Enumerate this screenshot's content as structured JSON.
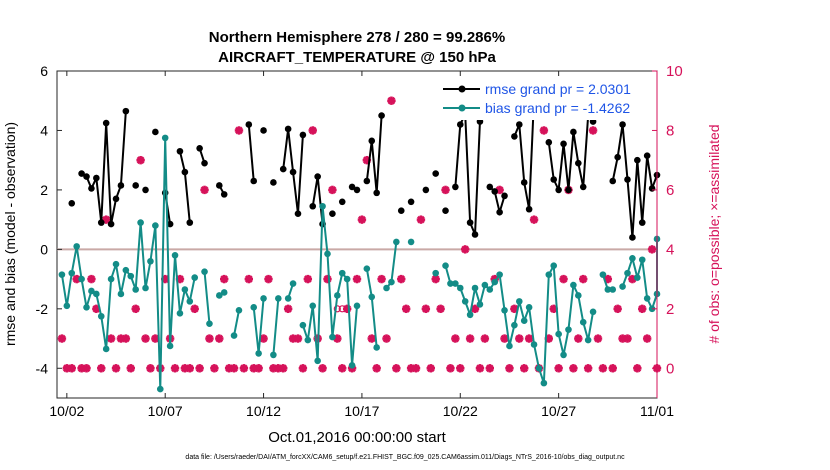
{
  "chart_data": {
    "type": "line",
    "title_line1": "Northern Hemisphere 278 / 280 = 99.286%",
    "title_line2": "AIRCRAFT_TEMPERATURE @ 150 hPa",
    "xlabel": "Oct.01,2016 00:00:00 start",
    "ylabel_left": "rmse and bias (model - observation)",
    "ylabel_right": "# of obs: o=possible; ×=assimilated",
    "footnote": "data file: /Users/raeder/DAI/ATM_forcXX/CAM6_setup/f.e21.FHIST_BGC.f09_025.CAM6assim.011/Diags_NTrS_2016-10/obs_diag_output.nc",
    "xlim": [
      0.5,
      31.0
    ],
    "ylim_left": [
      -5,
      6
    ],
    "ylim_right": [
      -1,
      10
    ],
    "x_ticks": [
      1,
      6,
      11,
      16,
      21,
      26,
      31
    ],
    "x_tick_labels": [
      "10/02",
      "10/07",
      "10/12",
      "10/17",
      "10/22",
      "10/27",
      "11/01"
    ],
    "y_ticks_left": [
      -4,
      -2,
      0,
      2,
      4,
      6
    ],
    "y_ticks_right": [
      0,
      2,
      4,
      6,
      8,
      10
    ],
    "zero_line": 0,
    "legend_position": "top-right",
    "colors": {
      "rmse": "#000000",
      "bias": "#138c87",
      "obs": "#d6125a",
      "zero_line": "#c9a9a6",
      "legend_text": "#1f55e6"
    },
    "series": [
      {
        "name": "rmse grand pr = 2.0301",
        "points": [
          [
            1.25,
            1.55
          ],
          [
            1.75,
            2.55
          ],
          [
            2.0,
            2.45
          ],
          [
            2.25,
            2.05
          ],
          [
            2.5,
            2.4
          ],
          [
            2.75,
            0.9
          ],
          [
            3.0,
            4.25
          ],
          [
            3.25,
            0.85
          ],
          [
            3.5,
            1.7
          ],
          [
            3.75,
            2.15
          ],
          [
            4.0,
            4.65
          ],
          [
            4.5,
            2.15
          ],
          [
            5.0,
            2.0
          ],
          [
            5.5,
            3.95
          ],
          [
            6.0,
            1.9
          ],
          [
            6.25,
            0.85
          ],
          [
            6.75,
            3.3
          ],
          [
            7.0,
            2.6
          ],
          [
            7.25,
            0.9
          ],
          [
            7.75,
            3.4
          ],
          [
            8.0,
            2.9
          ],
          [
            8.75,
            2.15
          ],
          [
            9.0,
            1.85
          ],
          [
            10.25,
            4.2
          ],
          [
            10.5,
            2.3
          ],
          [
            11.0,
            4.0
          ],
          [
            11.5,
            2.25
          ],
          [
            12.0,
            2.7
          ],
          [
            12.25,
            4.05
          ],
          [
            12.5,
            2.6
          ],
          [
            12.75,
            1.2
          ],
          [
            13.0,
            3.85
          ],
          [
            13.5,
            1.45
          ],
          [
            13.75,
            2.45
          ],
          [
            14.0,
            0.85
          ],
          [
            14.5,
            1.2
          ],
          [
            15.0,
            1.6
          ],
          [
            15.5,
            2.1
          ],
          [
            15.75,
            2.0
          ],
          [
            16.25,
            2.3
          ],
          [
            16.5,
            3.65
          ],
          [
            16.75,
            1.9
          ],
          [
            17.0,
            4.5
          ],
          [
            18.0,
            1.3
          ],
          [
            18.5,
            1.6
          ],
          [
            19.25,
            2.0
          ],
          [
            19.75,
            2.55
          ],
          [
            20.25,
            1.3
          ],
          [
            20.75,
            2.1
          ],
          [
            21.0,
            4.2
          ],
          [
            21.25,
            4.55
          ],
          [
            21.5,
            0.9
          ],
          [
            21.75,
            0.5
          ],
          [
            22.0,
            4.3
          ],
          [
            22.5,
            2.1
          ],
          [
            22.75,
            1.95
          ],
          [
            23.0,
            1.25
          ],
          [
            23.25,
            1.8
          ],
          [
            23.75,
            3.8
          ],
          [
            24.0,
            4.2
          ],
          [
            24.25,
            2.25
          ],
          [
            24.5,
            1.35
          ],
          [
            24.75,
            5.1
          ],
          [
            25.0,
            5.2
          ],
          [
            25.5,
            3.6
          ],
          [
            25.75,
            2.35
          ],
          [
            26.0,
            2.0
          ],
          [
            26.25,
            3.55
          ],
          [
            26.5,
            2.0
          ],
          [
            26.75,
            3.95
          ],
          [
            27.0,
            2.9
          ],
          [
            27.25,
            2.1
          ],
          [
            27.5,
            4.5
          ],
          [
            27.75,
            4.3
          ],
          [
            28.75,
            2.3
          ],
          [
            29.0,
            3.1
          ],
          [
            29.25,
            4.2
          ],
          [
            29.5,
            2.35
          ],
          [
            29.75,
            0.4
          ],
          [
            30.0,
            3.0
          ],
          [
            30.25,
            0.9
          ],
          [
            30.5,
            3.15
          ],
          [
            30.75,
            2.05
          ],
          [
            31.0,
            2.5
          ]
        ]
      },
      {
        "name": "bias grand pr = -1.4262",
        "points": [
          [
            0.75,
            -0.85
          ],
          [
            1.0,
            -1.9
          ],
          [
            1.25,
            -0.8
          ],
          [
            1.5,
            0.1
          ],
          [
            1.75,
            -1.0
          ],
          [
            2.0,
            -1.95
          ],
          [
            2.25,
            -1.4
          ],
          [
            2.5,
            -1.5
          ],
          [
            2.75,
            -2.25
          ],
          [
            3.0,
            -3.35
          ],
          [
            3.25,
            -1.0
          ],
          [
            3.5,
            -0.5
          ],
          [
            3.75,
            -1.5
          ],
          [
            4.0,
            -0.7
          ],
          [
            4.25,
            -0.9
          ],
          [
            4.5,
            -1.35
          ],
          [
            4.75,
            0.9
          ],
          [
            5.0,
            -1.3
          ],
          [
            5.25,
            -0.4
          ],
          [
            5.5,
            0.8
          ],
          [
            5.75,
            -4.7
          ],
          [
            6.0,
            3.75
          ],
          [
            6.25,
            -3.25
          ],
          [
            6.5,
            -0.2
          ],
          [
            6.75,
            -2.15
          ],
          [
            7.0,
            -1.35
          ],
          [
            7.25,
            -1.75
          ],
          [
            7.5,
            -0.95
          ],
          [
            8.0,
            -0.75
          ],
          [
            8.25,
            -2.5
          ],
          [
            8.75,
            -1.55
          ],
          [
            9.0,
            -1.45
          ],
          [
            9.5,
            -2.9
          ],
          [
            9.75,
            -2.05
          ],
          [
            10.5,
            -1.95
          ],
          [
            10.75,
            -3.5
          ],
          [
            11.0,
            -1.65
          ],
          [
            11.5,
            -3.55
          ],
          [
            11.75,
            -1.65
          ],
          [
            12.25,
            -1.65
          ],
          [
            12.5,
            -1.15
          ],
          [
            13.0,
            -2.55
          ],
          [
            13.25,
            -3.05
          ],
          [
            13.5,
            -1.9
          ],
          [
            13.75,
            -3.75
          ],
          [
            14.0,
            1.45
          ],
          [
            14.25,
            -0.15
          ],
          [
            14.5,
            -2.95
          ],
          [
            14.75,
            -1.55
          ],
          [
            15.0,
            -0.8
          ],
          [
            15.25,
            -1.0
          ],
          [
            15.5,
            -3.9
          ],
          [
            15.75,
            -1.9
          ],
          [
            16.25,
            -0.65
          ],
          [
            16.5,
            -1.6
          ],
          [
            16.75,
            -3.3
          ],
          [
            17.25,
            -1.3
          ],
          [
            17.5,
            -1.1
          ],
          [
            17.75,
            0.25
          ],
          [
            18.5,
            0.25
          ],
          [
            19.75,
            -0.8
          ],
          [
            20.25,
            -0.55
          ],
          [
            20.5,
            -1.15
          ],
          [
            20.75,
            -1.15
          ],
          [
            21.0,
            -1.3
          ],
          [
            21.25,
            -1.75
          ],
          [
            21.5,
            -2.2
          ],
          [
            21.75,
            -1.3
          ],
          [
            22.0,
            -1.85
          ],
          [
            22.25,
            -1.2
          ],
          [
            22.5,
            -1.35
          ],
          [
            22.75,
            -1.1
          ],
          [
            23.0,
            -0.85
          ],
          [
            23.25,
            -2.05
          ],
          [
            23.5,
            -3.25
          ],
          [
            23.75,
            -2.55
          ],
          [
            24.0,
            -1.75
          ],
          [
            24.25,
            -2.4
          ],
          [
            24.5,
            -1.95
          ],
          [
            24.75,
            -3.2
          ],
          [
            25.0,
            -4.0
          ],
          [
            25.25,
            -4.5
          ],
          [
            25.5,
            -0.85
          ],
          [
            25.75,
            -0.55
          ],
          [
            26.0,
            -2.85
          ],
          [
            26.25,
            -3.55
          ],
          [
            26.5,
            -2.7
          ],
          [
            26.75,
            -1.2
          ],
          [
            27.0,
            -1.55
          ],
          [
            27.25,
            -2.45
          ],
          [
            27.5,
            -3.05
          ],
          [
            27.75,
            -2.1
          ],
          [
            28.25,
            -0.85
          ],
          [
            28.5,
            -1.35
          ],
          [
            28.75,
            -1.35
          ],
          [
            29.25,
            -1.25
          ],
          [
            29.5,
            -0.8
          ],
          [
            29.75,
            -0.3
          ],
          [
            30.0,
            -0.95
          ],
          [
            30.25,
            -0.35
          ],
          [
            30.5,
            -1.65
          ],
          [
            30.75,
            -2.0
          ],
          [
            31.0,
            -1.5
          ],
          [
            31.25,
            0.35
          ]
        ]
      }
    ],
    "obs_assimilated": [
      [
        0.75,
        1
      ],
      [
        1.0,
        0
      ],
      [
        1.25,
        0
      ],
      [
        1.5,
        3
      ],
      [
        1.75,
        0
      ],
      [
        2.0,
        0
      ],
      [
        2.25,
        3
      ],
      [
        2.5,
        2
      ],
      [
        2.75,
        0
      ],
      [
        3.0,
        5
      ],
      [
        3.25,
        1
      ],
      [
        3.5,
        0
      ],
      [
        3.75,
        1
      ],
      [
        4.0,
        1
      ],
      [
        4.25,
        0
      ],
      [
        4.5,
        2
      ],
      [
        4.75,
        7
      ],
      [
        5.0,
        1
      ],
      [
        5.25,
        0
      ],
      [
        5.5,
        1
      ],
      [
        5.75,
        0
      ],
      [
        6.0,
        3
      ],
      [
        6.25,
        1
      ],
      [
        6.5,
        0
      ],
      [
        6.75,
        3
      ],
      [
        7.0,
        0
      ],
      [
        7.25,
        0
      ],
      [
        7.5,
        2
      ],
      [
        7.75,
        0
      ],
      [
        8.0,
        6
      ],
      [
        8.25,
        1
      ],
      [
        8.5,
        0
      ],
      [
        8.75,
        1
      ],
      [
        9.0,
        3
      ],
      [
        9.25,
        0
      ],
      [
        9.5,
        0
      ],
      [
        9.75,
        8
      ],
      [
        10.0,
        0
      ],
      [
        10.25,
        3
      ],
      [
        10.5,
        0
      ],
      [
        10.75,
        0
      ],
      [
        11.0,
        1
      ],
      [
        11.25,
        3
      ],
      [
        11.5,
        0
      ],
      [
        11.75,
        0
      ],
      [
        12.0,
        0
      ],
      [
        12.25,
        2
      ],
      [
        12.5,
        1
      ],
      [
        12.75,
        1
      ],
      [
        13.0,
        0
      ],
      [
        13.25,
        3
      ],
      [
        13.5,
        8
      ],
      [
        13.75,
        1
      ],
      [
        14.0,
        0
      ],
      [
        14.25,
        3
      ],
      [
        14.5,
        6
      ],
      [
        14.75,
        1
      ],
      [
        15.0,
        0
      ],
      [
        15.25,
        2
      ],
      [
        15.5,
        0
      ],
      [
        15.75,
        3
      ],
      [
        16.0,
        5
      ],
      [
        16.25,
        7
      ],
      [
        16.5,
        1
      ],
      [
        16.75,
        0
      ],
      [
        17.0,
        3
      ],
      [
        17.25,
        1
      ],
      [
        17.5,
        9
      ],
      [
        17.75,
        0
      ],
      [
        18.0,
        3
      ],
      [
        18.25,
        2
      ],
      [
        18.5,
        0
      ],
      [
        18.75,
        0
      ],
      [
        19.0,
        5
      ],
      [
        19.25,
        2
      ],
      [
        19.5,
        0
      ],
      [
        19.75,
        3
      ],
      [
        20.0,
        2
      ],
      [
        20.25,
        6
      ],
      [
        20.5,
        0
      ],
      [
        20.75,
        1
      ],
      [
        21.0,
        0
      ],
      [
        21.25,
        4
      ],
      [
        21.5,
        1
      ],
      [
        21.75,
        2
      ],
      [
        22.0,
        0
      ],
      [
        22.25,
        1
      ],
      [
        22.5,
        0
      ],
      [
        22.75,
        3
      ],
      [
        23.0,
        6
      ],
      [
        23.25,
        1
      ],
      [
        23.5,
        0
      ],
      [
        23.75,
        2
      ],
      [
        24.0,
        1
      ],
      [
        24.25,
        0
      ],
      [
        24.5,
        1
      ],
      [
        24.75,
        5
      ],
      [
        25.0,
        0
      ],
      [
        25.25,
        8
      ],
      [
        25.5,
        1
      ],
      [
        25.75,
        2
      ],
      [
        26.0,
        0
      ],
      [
        26.25,
        3
      ],
      [
        26.5,
        6
      ],
      [
        26.75,
        0
      ],
      [
        27.0,
        1
      ],
      [
        27.25,
        3
      ],
      [
        27.5,
        0
      ],
      [
        27.75,
        8
      ],
      [
        28.0,
        1
      ],
      [
        28.25,
        0
      ],
      [
        28.5,
        3
      ],
      [
        28.75,
        0
      ],
      [
        29.0,
        2
      ],
      [
        29.25,
        1
      ],
      [
        29.5,
        1
      ],
      [
        29.75,
        3
      ],
      [
        30.0,
        0
      ],
      [
        30.25,
        2
      ],
      [
        30.5,
        1
      ],
      [
        30.75,
        4
      ],
      [
        31.0,
        0
      ]
    ],
    "obs_possible": [
      [
        14.75,
        2
      ],
      [
        15.0,
        2
      ]
    ]
  }
}
